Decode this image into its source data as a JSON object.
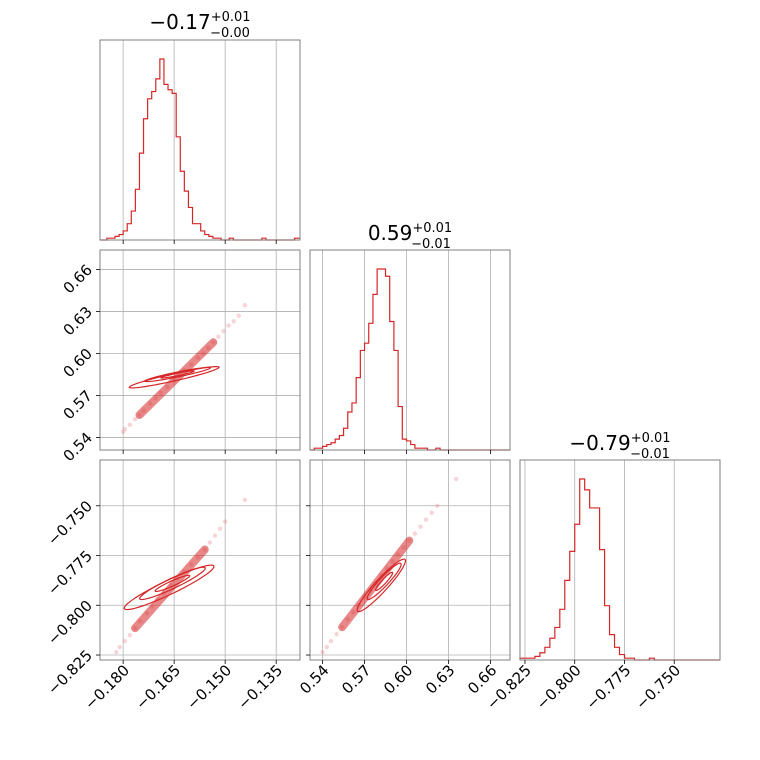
{
  "chart_data": {
    "type": "corner",
    "color": "#d62728",
    "parameters": [
      {
        "title": {
          "value": "−0.17",
          "plus": "+0.01",
          "minus": "−0.00"
        },
        "range": [
          -0.1868,
          -0.128
        ],
        "ticks": [
          -0.18,
          -0.165,
          -0.15,
          -0.135
        ],
        "tick_labels": [
          "−0.180",
          "−0.165",
          "−0.150",
          "−0.135"
        ]
      },
      {
        "title": {
          "value": "0.59",
          "plus": "+0.01",
          "minus": "−0.01"
        },
        "range": [
          0.531,
          0.674
        ],
        "ticks": [
          0.54,
          0.57,
          0.6,
          0.63,
          0.66
        ],
        "tick_labels": [
          "0.54",
          "0.57",
          "0.60",
          "0.63",
          "0.66"
        ]
      },
      {
        "title": {
          "value": "−0.79",
          "plus": "+0.01",
          "minus": "−0.01"
        },
        "range": [
          -0.8275,
          -0.727
        ],
        "ticks": [
          -0.825,
          -0.8,
          -0.775,
          -0.75
        ],
        "tick_labels": [
          "−0.825",
          "−0.800",
          "−0.775",
          "−0.750"
        ]
      }
    ],
    "histograms": [
      {
        "param": 0,
        "bin_edges": [
          -0.1868,
          -0.186,
          -0.1848,
          -0.1836,
          -0.1824,
          -0.1812,
          -0.18,
          -0.1788,
          -0.1776,
          -0.1764,
          -0.1752,
          -0.174,
          -0.1728,
          -0.1716,
          -0.1704,
          -0.1692,
          -0.168,
          -0.1668,
          -0.1656,
          -0.1644,
          -0.1632,
          -0.162,
          -0.1608,
          -0.1596,
          -0.1584,
          -0.1572,
          -0.156,
          -0.1548,
          -0.1536,
          -0.1524,
          -0.1512,
          -0.15,
          -0.1488,
          -0.1476,
          -0.1464,
          -0.1452,
          -0.144,
          -0.1428,
          -0.1416,
          -0.1404,
          -0.1392,
          -0.138,
          -0.1368,
          -0.1356,
          -0.1344,
          -0.1332,
          -0.132,
          -0.1308,
          -0.1296,
          -0.128
        ],
        "counts": [
          0,
          0,
          1,
          1,
          2,
          3,
          5,
          9,
          16,
          28,
          48,
          67,
          78,
          82,
          89,
          100,
          86,
          83,
          81,
          57,
          38,
          27,
          18,
          9,
          9,
          5,
          3,
          2,
          1,
          1,
          0,
          0,
          1,
          0,
          0,
          0,
          0,
          0,
          0,
          0,
          1,
          0,
          0,
          0,
          0,
          0,
          0,
          0,
          1
        ]
      },
      {
        "param": 1,
        "bin_edges": [
          0.531,
          0.534,
          0.537,
          0.54,
          0.543,
          0.546,
          0.549,
          0.552,
          0.555,
          0.558,
          0.561,
          0.564,
          0.567,
          0.57,
          0.573,
          0.576,
          0.579,
          0.582,
          0.585,
          0.588,
          0.591,
          0.594,
          0.597,
          0.6,
          0.603,
          0.606,
          0.609,
          0.612,
          0.615,
          0.618,
          0.621,
          0.624,
          0.627,
          0.63,
          0.633,
          0.636,
          0.639,
          0.642,
          0.645,
          0.648,
          0.651,
          0.654,
          0.657,
          0.66,
          0.663,
          0.666,
          0.669,
          0.674
        ],
        "counts": [
          0,
          1,
          1,
          2,
          3,
          4,
          6,
          8,
          12,
          21,
          26,
          40,
          55,
          59,
          70,
          86,
          100,
          100,
          96,
          71,
          55,
          24,
          6,
          5,
          3,
          1,
          1,
          1,
          0,
          0,
          1,
          0,
          0,
          0,
          0,
          0,
          0,
          0,
          0,
          0,
          0,
          0,
          0,
          0,
          0,
          0,
          0
        ]
      },
      {
        "param": 2,
        "bin_edges": [
          -0.8275,
          -0.825,
          -0.8225,
          -0.82,
          -0.8175,
          -0.815,
          -0.8125,
          -0.81,
          -0.8075,
          -0.805,
          -0.8025,
          -0.8,
          -0.7975,
          -0.795,
          -0.7925,
          -0.79,
          -0.7875,
          -0.785,
          -0.7825,
          -0.78,
          -0.7775,
          -0.775,
          -0.7725,
          -0.77,
          -0.7675,
          -0.765,
          -0.7625,
          -0.76,
          -0.7575,
          -0.755,
          -0.7525,
          -0.75,
          -0.7475,
          -0.745,
          -0.7425,
          -0.74,
          -0.7375,
          -0.735,
          -0.7325,
          -0.73,
          -0.727
        ],
        "counts": [
          1,
          1,
          1,
          2,
          4,
          7,
          12,
          18,
          28,
          44,
          60,
          75,
          100,
          94,
          84,
          84,
          61,
          30,
          14,
          7,
          3,
          1,
          1,
          0,
          0,
          0,
          1,
          0,
          0,
          0,
          0,
          0,
          0,
          0,
          0,
          0,
          0,
          0,
          0,
          0
        ]
      }
    ],
    "pairs": [
      {
        "x": 0,
        "y": 1,
        "samples": [
          [
            -0.18,
            0.544
          ],
          [
            -0.1795,
            0.546
          ],
          [
            -0.178,
            0.549
          ],
          [
            -0.1765,
            0.553
          ],
          [
            -0.1752,
            0.556
          ],
          [
            -0.174,
            0.559
          ],
          [
            -0.172,
            0.564
          ],
          [
            -0.1705,
            0.568
          ],
          [
            -0.169,
            0.572
          ],
          [
            -0.167,
            0.576
          ],
          [
            -0.165,
            0.581
          ],
          [
            -0.1635,
            0.584
          ],
          [
            -0.162,
            0.588
          ],
          [
            -0.16,
            0.592
          ],
          [
            -0.158,
            0.597
          ],
          [
            -0.1565,
            0.6
          ],
          [
            -0.155,
            0.604
          ],
          [
            -0.1535,
            0.608
          ],
          [
            -0.152,
            0.612
          ],
          [
            -0.1505,
            0.616
          ],
          [
            -0.149,
            0.62
          ],
          [
            -0.1475,
            0.623
          ],
          [
            -0.146,
            0.627
          ],
          [
            -0.1442,
            0.6345
          ]
        ],
        "contours": [
          {
            "level": 0.39,
            "center": [
              -0.164,
              0.585
            ],
            "half_axis_x": 0.0048,
            "half_axis_y": 0.0025
          },
          {
            "level": 0.86,
            "center": [
              -0.164,
              0.585
            ],
            "half_axis_x": 0.0095,
            "half_axis_y": 0.005
          },
          {
            "level": 0.99,
            "center": [
              -0.165,
              0.583
            ],
            "half_axis_x": 0.013,
            "half_axis_y": 0.0075
          }
        ]
      },
      {
        "x": 0,
        "y": 2,
        "samples": [
          [
            -0.182,
            -0.8235
          ],
          [
            -0.181,
            -0.821
          ],
          [
            -0.1795,
            -0.818
          ],
          [
            -0.178,
            -0.815
          ],
          [
            -0.1765,
            -0.8115
          ],
          [
            -0.175,
            -0.808
          ],
          [
            -0.173,
            -0.804
          ],
          [
            -0.1715,
            -0.8005
          ],
          [
            -0.17,
            -0.797
          ],
          [
            -0.168,
            -0.794
          ],
          [
            -0.166,
            -0.79
          ],
          [
            -0.164,
            -0.7865
          ],
          [
            -0.162,
            -0.783
          ],
          [
            -0.16,
            -0.7795
          ],
          [
            -0.158,
            -0.776
          ],
          [
            -0.156,
            -0.772
          ],
          [
            -0.1545,
            -0.7685
          ],
          [
            -0.153,
            -0.765
          ],
          [
            -0.1515,
            -0.7615
          ],
          [
            -0.15,
            -0.758
          ],
          [
            -0.1442,
            -0.747
          ]
        ],
        "contours": [
          {
            "level": 0.39,
            "center": [
              -0.1655,
              -0.789
            ],
            "half_axis_x": 0.005,
            "half_axis_y": 0.004
          },
          {
            "level": 0.86,
            "center": [
              -0.1655,
              -0.789
            ],
            "half_axis_x": 0.0095,
            "half_axis_y": 0.008
          },
          {
            "level": 0.99,
            "center": [
              -0.1665,
              -0.791
            ],
            "half_axis_x": 0.013,
            "half_axis_y": 0.011
          }
        ]
      },
      {
        "x": 1,
        "y": 2,
        "samples": [
          [
            0.54,
            -0.8235
          ],
          [
            0.543,
            -0.821
          ],
          [
            0.546,
            -0.818
          ],
          [
            0.55,
            -0.8145
          ],
          [
            0.554,
            -0.811
          ],
          [
            0.558,
            -0.807
          ],
          [
            0.562,
            -0.8035
          ],
          [
            0.566,
            -0.8
          ],
          [
            0.57,
            -0.796
          ],
          [
            0.574,
            -0.7925
          ],
          [
            0.578,
            -0.789
          ],
          [
            0.582,
            -0.785
          ],
          [
            0.586,
            -0.7815
          ],
          [
            0.59,
            -0.778
          ],
          [
            0.594,
            -0.7745
          ],
          [
            0.598,
            -0.771
          ],
          [
            0.602,
            -0.7675
          ],
          [
            0.606,
            -0.764
          ],
          [
            0.61,
            -0.7605
          ],
          [
            0.614,
            -0.757
          ],
          [
            0.618,
            -0.7535
          ],
          [
            0.622,
            -0.75
          ],
          [
            0.6355,
            -0.7365
          ]
        ],
        "contours": [
          {
            "level": 0.39,
            "center": [
              0.584,
              -0.788
            ],
            "half_axis_x": 0.006,
            "half_axis_y": 0.0045
          },
          {
            "level": 0.86,
            "center": [
              0.584,
              -0.788
            ],
            "half_axis_x": 0.012,
            "half_axis_y": 0.009
          },
          {
            "level": 0.99,
            "center": [
              0.582,
              -0.79
            ],
            "half_axis_x": 0.017,
            "half_axis_y": 0.013
          }
        ]
      }
    ]
  }
}
